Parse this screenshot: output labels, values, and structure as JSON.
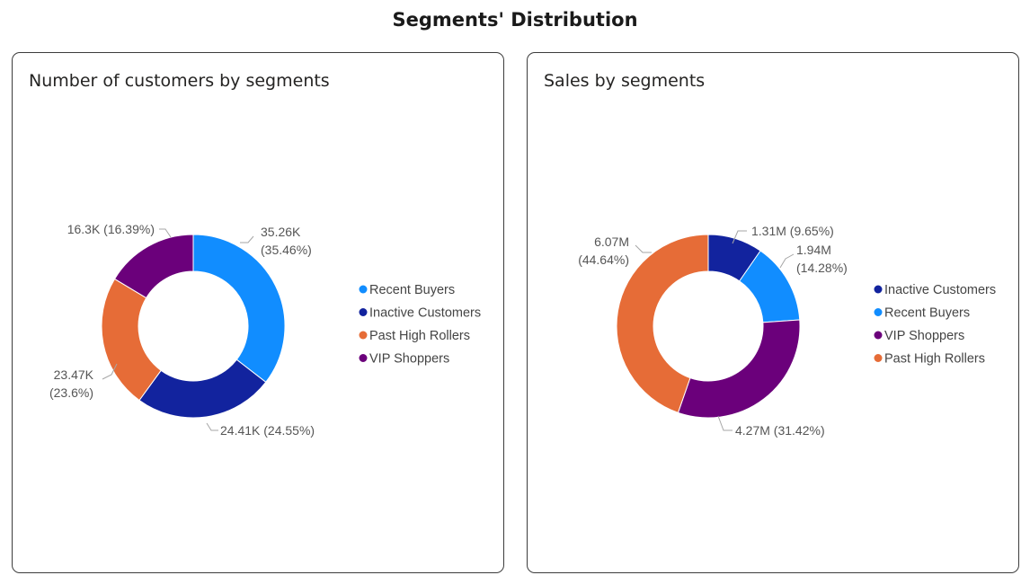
{
  "page": {
    "title": "Segments' Distribution"
  },
  "chart_data": [
    {
      "type": "pie",
      "title": "Number of customers by segments",
      "categories": [
        "Recent Buyers",
        "Inactive Customers",
        "Past High Rollers",
        "VIP Shoppers"
      ],
      "values": [
        35.26,
        24.41,
        23.47,
        16.3
      ],
      "value_labels": [
        "35.26K",
        "24.41K",
        "23.47K",
        "16.3K"
      ],
      "percent_labels": [
        "(35.46%)",
        "(24.55%)",
        "(23.6%)",
        "(16.39%)"
      ],
      "colors": [
        "#118DFF",
        "#12239E",
        "#E66C37",
        "#6B007B"
      ],
      "legend": "right"
    },
    {
      "type": "pie",
      "title": "Sales by segments",
      "categories": [
        "Inactive Customers",
        "Recent Buyers",
        "VIP Shoppers",
        "Past High Rollers"
      ],
      "values": [
        1.31,
        1.94,
        4.27,
        6.07
      ],
      "value_labels": [
        "1.31M",
        "1.94M",
        "4.27M",
        "6.07M"
      ],
      "percent_labels": [
        "(9.65%)",
        "(14.28%)",
        "(31.42%)",
        "(44.64%)"
      ],
      "colors": [
        "#12239E",
        "#118DFF",
        "#6B007B",
        "#E66C37"
      ],
      "legend": "right"
    }
  ]
}
